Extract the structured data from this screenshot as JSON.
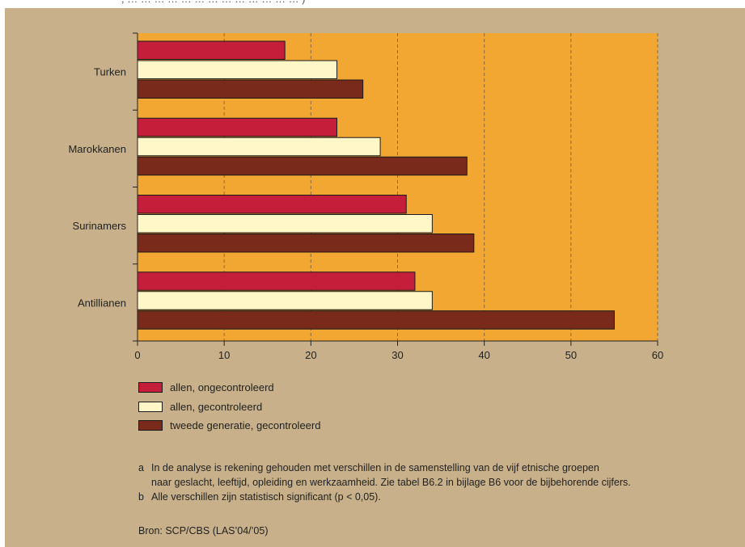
{
  "top_text": ", … … … … … … … … … … … … … )",
  "chart_data": {
    "type": "bar",
    "orientation": "horizontal",
    "categories": [
      "Turken",
      "Marokkanen",
      "Surinamers",
      "Antillianen"
    ],
    "series": [
      {
        "name": "allen, ongecontroleerd",
        "color": "#c41e3a",
        "values": [
          17,
          23,
          31,
          32
        ]
      },
      {
        "name": "allen, gecontroleerd",
        "color": "#fff7c8",
        "values": [
          23,
          28,
          34,
          34
        ]
      },
      {
        "name": "tweede generatie, gecontroleerd",
        "color": "#7a2a1a",
        "values": [
          26,
          38,
          38.8,
          55
        ]
      }
    ],
    "xlim": [
      0,
      60
    ],
    "xticks": [
      0,
      10,
      20,
      30,
      40,
      50,
      60
    ],
    "grid": "vertical dashed",
    "plot_background": "#f2a733",
    "legend_position": "bottom-left",
    "title": "",
    "xlabel": "",
    "ylabel": ""
  },
  "notes": [
    {
      "letter": "a",
      "lines": [
        "In de analyse is rekening gehouden met verschillen in de samenstelling van de vijf etnische groepen",
        "naar geslacht, leeftijd, opleiding en werkzaamheid. Zie tabel B6.2 in bijlage B6 voor de bijbehorende cijfers."
      ]
    },
    {
      "letter": "b",
      "lines": [
        "Alle verschillen zijn statistisch significant (p < 0,05)."
      ]
    }
  ],
  "source": "Bron: SCP/CBS (LAS’04/’05)"
}
